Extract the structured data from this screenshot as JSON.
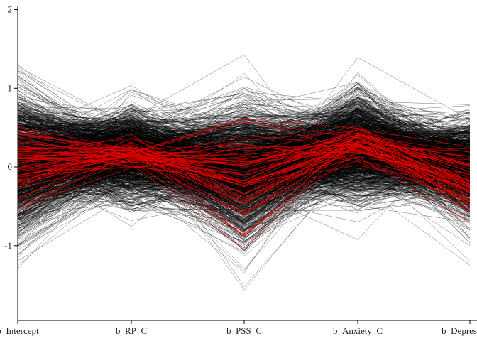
{
  "chart_data": {
    "type": "parallel_coordinates",
    "axes": [
      "b_Intercept",
      "b_RP_C",
      "b_PSS_C",
      "b_Anxiety_C",
      "b_Depression_C"
    ],
    "axis_tick_labels": [
      "b_Intercept",
      "b_RP_C",
      "b_PSS_C",
      "b_Anxiety_C",
      "b_Depres"
    ],
    "y_ticks": [
      {
        "value": -1,
        "label": "-1"
      },
      {
        "value": 0,
        "label": "0"
      },
      {
        "value": 1,
        "label": "1"
      },
      {
        "value": 2,
        "label": "2"
      }
    ],
    "ylim": [
      -1.95,
      2.05
    ],
    "grid": false,
    "legend": "none",
    "series": [
      {
        "color": "#000000",
        "n_lines": 1400,
        "mean": [
          0.05,
          0.17,
          -0.05,
          0.27,
          -0.03
        ],
        "sd": [
          0.42,
          0.27,
          0.43,
          0.31,
          0.29
        ]
      },
      {
        "color": "#e00000",
        "n_lines": 60,
        "mean": [
          0.05,
          0.17,
          -0.12,
          0.3,
          -0.15
        ],
        "sd": [
          0.25,
          0.1,
          0.35,
          0.12,
          0.2
        ]
      }
    ]
  }
}
